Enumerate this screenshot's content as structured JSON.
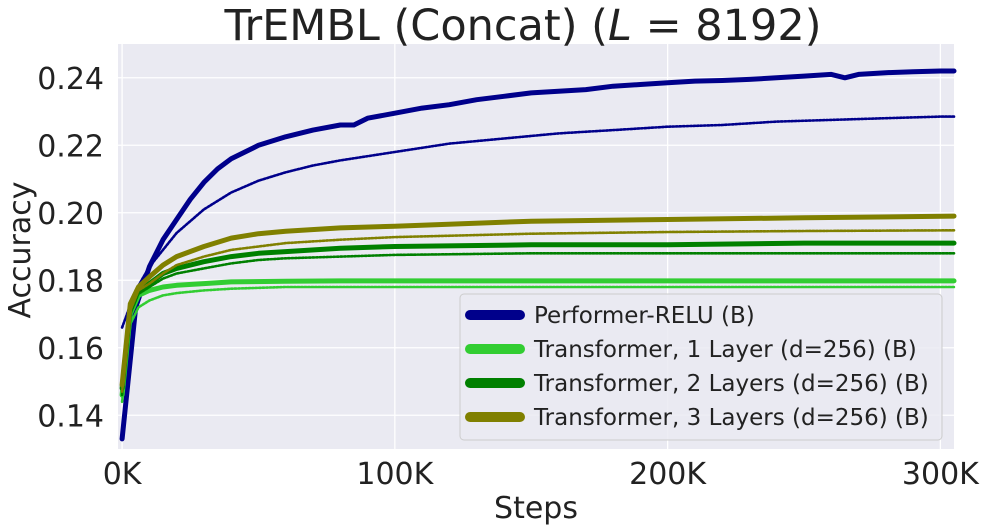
{
  "chart_data": {
    "type": "line",
    "title_prefix": "TrEMBL (Concat) (",
    "title_math": "L",
    "title_suffix": " = 8192)",
    "xlabel": "Steps",
    "ylabel": "Accuracy",
    "xlim": [
      -1500,
      305000
    ],
    "ylim": [
      0.13,
      0.25
    ],
    "xticks": [
      0,
      100000,
      200000,
      300000
    ],
    "xtick_labels": [
      "0K",
      "100K",
      "200K",
      "300K"
    ],
    "yticks": [
      0.14,
      0.16,
      0.18,
      0.2,
      0.22,
      0.24
    ],
    "ytick_labels": [
      "0.14",
      "0.16",
      "0.18",
      "0.20",
      "0.22",
      "0.24"
    ],
    "grid": true,
    "legend_position": "lower-right",
    "series": [
      {
        "name": "Performer-RELU (B)",
        "color": "#00008b",
        "style": "solid",
        "x": [
          0,
          5000,
          10000,
          15000,
          20000,
          25000,
          30000,
          35000,
          40000,
          50000,
          60000,
          70000,
          80000,
          85000,
          90000,
          100000,
          110000,
          120000,
          130000,
          140000,
          150000,
          160000,
          170000,
          180000,
          190000,
          200000,
          210000,
          220000,
          230000,
          240000,
          250000,
          260000,
          265000,
          270000,
          280000,
          290000,
          300000,
          305000
        ],
        "values": [
          0.133,
          0.172,
          0.184,
          0.192,
          0.198,
          0.204,
          0.209,
          0.213,
          0.216,
          0.22,
          0.2225,
          0.2245,
          0.226,
          0.226,
          0.228,
          0.2295,
          0.231,
          0.232,
          0.2335,
          0.2345,
          0.2355,
          0.236,
          0.2365,
          0.2375,
          0.238,
          0.2385,
          0.239,
          0.2392,
          0.2395,
          0.24,
          0.2405,
          0.241,
          0.24,
          0.241,
          0.2415,
          0.2418,
          0.242,
          0.242
        ]
      },
      {
        "name": "",
        "color": "#00008b",
        "style": "dotted",
        "x": [
          0,
          5000,
          10000,
          20000,
          30000,
          40000,
          50000,
          60000,
          70000,
          80000,
          100000,
          120000,
          140000,
          160000,
          180000,
          200000,
          220000,
          240000,
          260000,
          280000,
          300000,
          305000
        ],
        "values": [
          0.166,
          0.177,
          0.184,
          0.194,
          0.201,
          0.206,
          0.2095,
          0.212,
          0.214,
          0.2155,
          0.218,
          0.2205,
          0.222,
          0.2235,
          0.2245,
          0.2255,
          0.226,
          0.227,
          0.2275,
          0.228,
          0.2285,
          0.2285
        ]
      },
      {
        "name": "Transformer, 1 Layer (d=256) (B)",
        "color": "#32cd32",
        "style": "solid",
        "x": [
          0,
          3000,
          6000,
          10000,
          15000,
          20000,
          30000,
          40000,
          60000,
          80000,
          100000,
          150000,
          200000,
          250000,
          305000
        ],
        "values": [
          0.146,
          0.17,
          0.1755,
          0.177,
          0.178,
          0.1785,
          0.179,
          0.1795,
          0.1797,
          0.1798,
          0.1798,
          0.1798,
          0.1798,
          0.1798,
          0.1798
        ]
      },
      {
        "name": "",
        "color": "#32cd32",
        "style": "dotted",
        "x": [
          0,
          3000,
          6000,
          10000,
          15000,
          20000,
          30000,
          40000,
          60000,
          80000,
          100000,
          150000,
          200000,
          250000,
          305000
        ],
        "values": [
          0.144,
          0.167,
          0.172,
          0.174,
          0.1755,
          0.1762,
          0.177,
          0.1775,
          0.178,
          0.178,
          0.178,
          0.178,
          0.178,
          0.178,
          0.178
        ]
      },
      {
        "name": "Transformer, 2 Layers (d=256) (B)",
        "color": "#008000",
        "style": "solid",
        "x": [
          0,
          3000,
          6000,
          10000,
          15000,
          20000,
          30000,
          40000,
          50000,
          60000,
          80000,
          100000,
          150000,
          200000,
          250000,
          305000
        ],
        "values": [
          0.148,
          0.172,
          0.177,
          0.179,
          0.182,
          0.1835,
          0.1855,
          0.187,
          0.188,
          0.1885,
          0.1895,
          0.19,
          0.1905,
          0.1905,
          0.191,
          0.191
        ]
      },
      {
        "name": "",
        "color": "#008000",
        "style": "dotted",
        "x": [
          0,
          3000,
          6000,
          10000,
          15000,
          20000,
          30000,
          40000,
          50000,
          60000,
          80000,
          100000,
          150000,
          200000,
          250000,
          305000
        ],
        "values": [
          0.146,
          0.17,
          0.176,
          0.178,
          0.1805,
          0.182,
          0.1835,
          0.185,
          0.186,
          0.1865,
          0.187,
          0.1875,
          0.188,
          0.188,
          0.188,
          0.188
        ]
      },
      {
        "name": "Transformer, 3 Layers (d=256) (B)",
        "color": "#808000",
        "style": "solid",
        "x": [
          0,
          3000,
          6000,
          10000,
          15000,
          20000,
          30000,
          40000,
          50000,
          60000,
          80000,
          100000,
          150000,
          200000,
          250000,
          305000
        ],
        "values": [
          0.149,
          0.173,
          0.178,
          0.181,
          0.1845,
          0.187,
          0.19,
          0.1925,
          0.1938,
          0.1945,
          0.1955,
          0.196,
          0.1975,
          0.198,
          0.1985,
          0.199
        ]
      },
      {
        "name": "",
        "color": "#808000",
        "style": "dotted",
        "x": [
          0,
          3000,
          6000,
          10000,
          15000,
          20000,
          30000,
          40000,
          50000,
          60000,
          80000,
          100000,
          150000,
          200000,
          250000,
          305000
        ],
        "values": [
          0.147,
          0.171,
          0.177,
          0.179,
          0.182,
          0.1845,
          0.187,
          0.189,
          0.19,
          0.191,
          0.192,
          0.1928,
          0.1938,
          0.1943,
          0.1946,
          0.1948
        ]
      }
    ]
  }
}
